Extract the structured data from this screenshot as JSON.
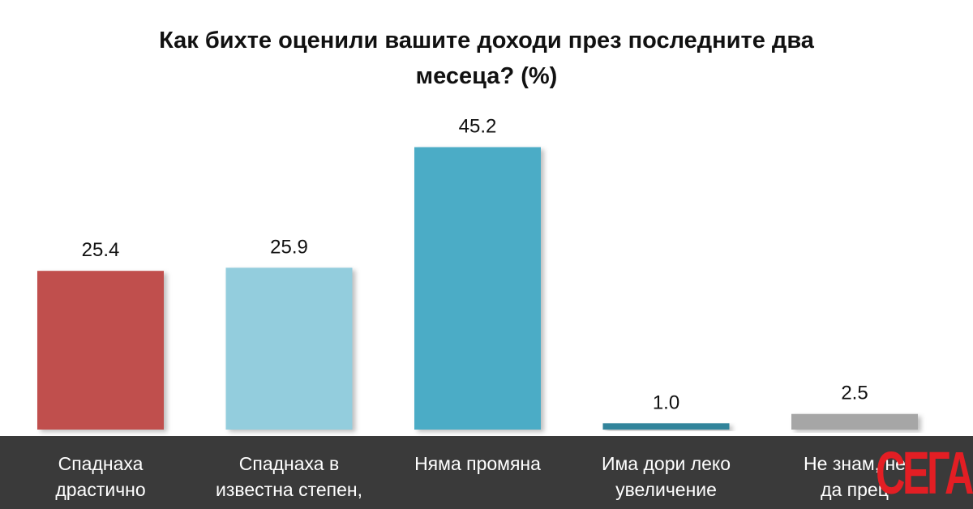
{
  "chart_data": {
    "type": "bar",
    "title_lines": [
      "Как бихте оценили вашите доходи през последните два",
      "месеца? (%)"
    ],
    "categories": [
      [
        "Спаднаха",
        "драстично"
      ],
      [
        "Спаднаха в",
        "известна степен,"
      ],
      [
        "Няма промяна"
      ],
      [
        "Има дори леко",
        "увеличение"
      ],
      [
        "Не знам, не",
        "да прец"
      ]
    ],
    "values": [
      25.4,
      25.9,
      45.2,
      1.0,
      2.5
    ],
    "value_labels": [
      "25.4",
      "25.9",
      "45.2",
      "1.0",
      "2.5"
    ],
    "colors": [
      "#c0504d",
      "#93cddd",
      "#4bacc6",
      "#31849b",
      "#a6a6a6"
    ],
    "ylim": [
      0,
      55
    ],
    "grid": false,
    "legend": "none"
  },
  "logo_text": "СЕГА"
}
